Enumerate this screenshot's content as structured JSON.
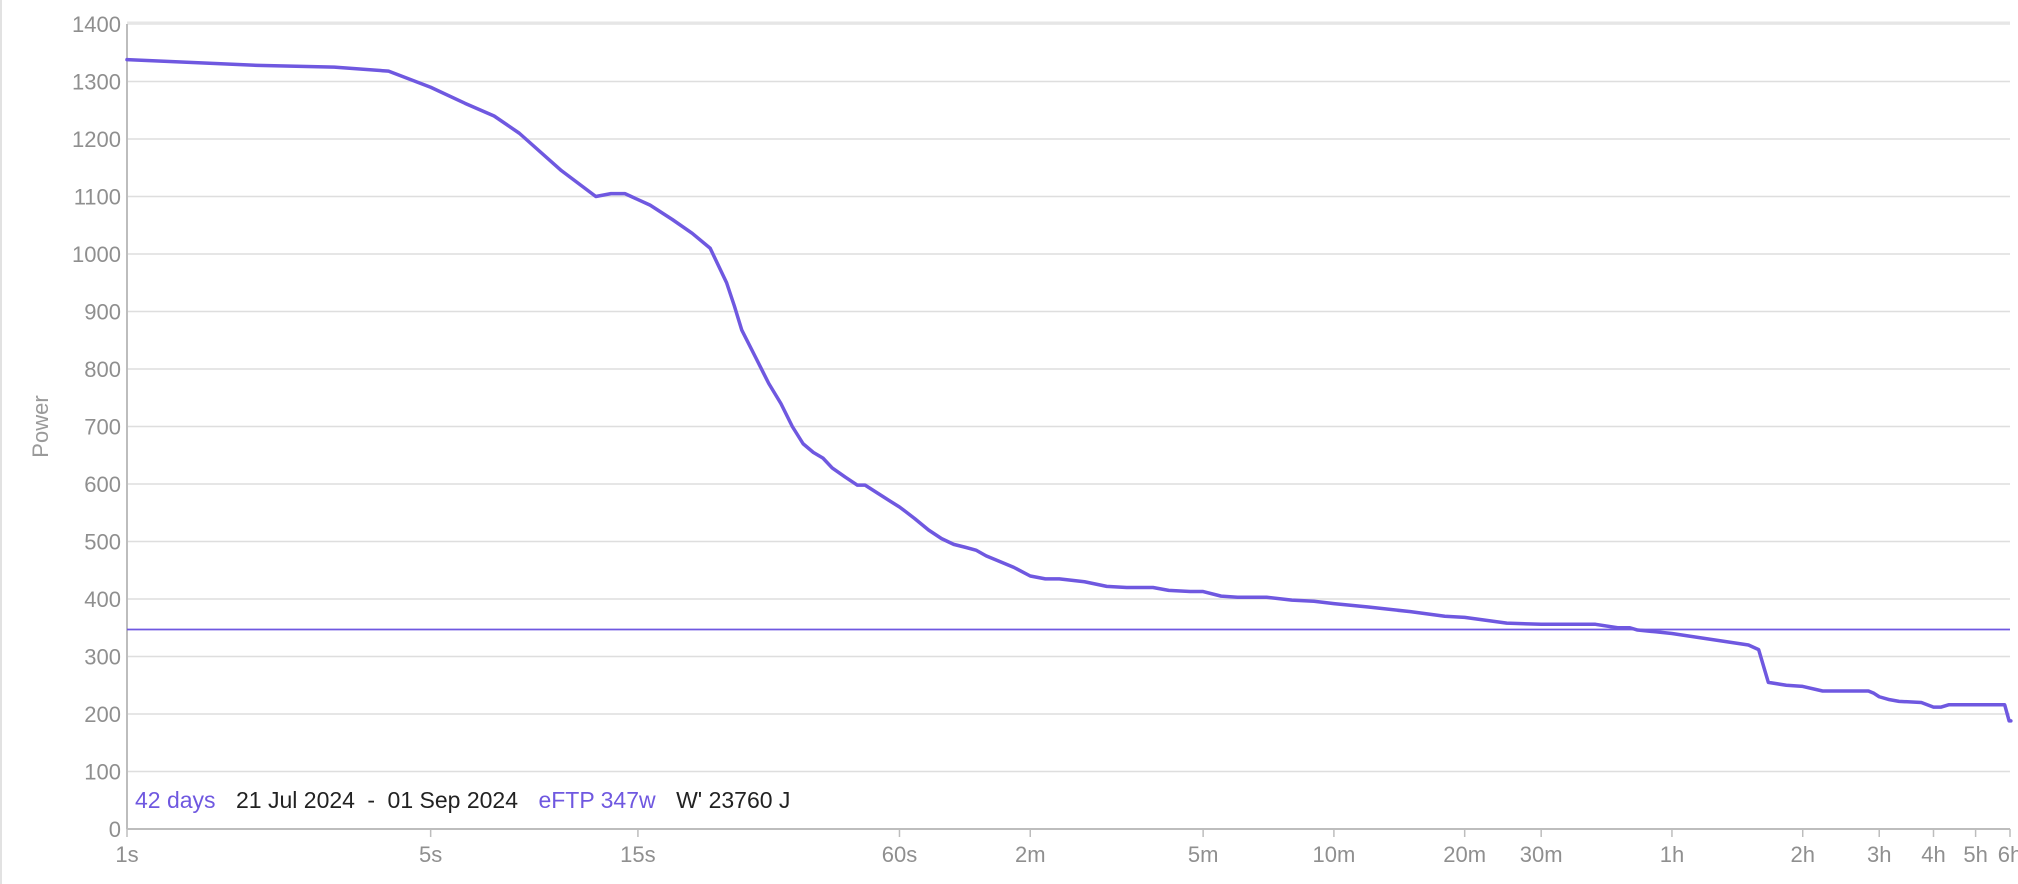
{
  "chart_data": {
    "type": "line",
    "title": "",
    "xlabel": "",
    "ylabel": "Power",
    "x_scale": "log",
    "grid": true,
    "ylim": [
      0,
      1400
    ],
    "y_ticks": [
      0,
      100,
      200,
      300,
      400,
      500,
      600,
      700,
      800,
      900,
      1000,
      1100,
      1200,
      1300,
      1400
    ],
    "x_ticks": [
      {
        "label": "1s",
        "value": 1
      },
      {
        "label": "5s",
        "value": 5
      },
      {
        "label": "15s",
        "value": 15
      },
      {
        "label": "60s",
        "value": 60
      },
      {
        "label": "2m",
        "value": 120
      },
      {
        "label": "5m",
        "value": 300
      },
      {
        "label": "10m",
        "value": 600
      },
      {
        "label": "20m",
        "value": 1200
      },
      {
        "label": "30m",
        "value": 1800
      },
      {
        "label": "1h",
        "value": 3600
      },
      {
        "label": "2h",
        "value": 7200
      },
      {
        "label": "3h",
        "value": 10800
      },
      {
        "label": "4h",
        "value": 14400
      },
      {
        "label": "5h",
        "value": 18000
      },
      {
        "label": "6h",
        "value": 21600
      }
    ],
    "series": [
      {
        "color": "#6f58e0",
        "x": [
          1,
          2,
          3,
          4,
          5,
          6,
          7,
          8,
          10,
          12,
          13,
          14,
          16,
          18,
          20,
          22,
          24,
          25,
          26,
          28,
          30,
          32,
          34,
          36,
          38,
          40,
          42,
          45,
          48,
          50,
          55,
          60,
          62,
          65,
          70,
          75,
          80,
          85,
          90,
          95,
          100,
          110,
          120,
          130,
          140,
          160,
          180,
          200,
          230,
          250,
          280,
          300,
          330,
          360,
          420,
          480,
          540,
          600,
          720,
          900,
          1080,
          1200,
          1500,
          1800,
          2400,
          2700,
          2880,
          3000,
          3300,
          3600,
          5400,
          5700,
          6000,
          6600,
          7200,
          8000,
          8400,
          9000,
          10200,
          10500,
          10800,
          11400,
          12000,
          13500,
          14400,
          15000,
          15600,
          16200,
          21000,
          21500,
          21700
        ],
        "y": [
          1338,
          1328,
          1325,
          1318,
          1290,
          1262,
          1240,
          1210,
          1145,
          1100,
          1105,
          1105,
          1085,
          1060,
          1036,
          1010,
          950,
          910,
          868,
          820,
          775,
          740,
          700,
          670,
          655,
          645,
          628,
          612,
          598,
          598,
          578,
          560,
          552,
          540,
          520,
          505,
          495,
          490,
          485,
          475,
          468,
          455,
          440,
          435,
          435,
          430,
          422,
          420,
          420,
          415,
          413,
          413,
          405,
          403,
          403,
          398,
          396,
          392,
          386,
          378,
          370,
          368,
          358,
          356,
          356,
          350,
          350,
          346,
          343,
          340,
          320,
          312,
          255,
          250,
          248,
          240,
          240,
          240,
          240,
          236,
          230,
          225,
          222,
          220,
          212,
          212,
          216,
          216,
          216,
          188,
          188
        ]
      }
    ],
    "reference_lines": [
      {
        "y": 347,
        "color": "#6f58e0"
      }
    ]
  },
  "info": {
    "days": "42 days",
    "range_start": "21 Jul 2024",
    "range_separator": "-",
    "range_end": "01 Sep 2024",
    "eftp": "eFTP 347w",
    "wprime": "W' 23760 J"
  },
  "colors": {
    "accent": "#6f58e0",
    "grid": "#dedede",
    "axis_text": "#8f8f8f"
  }
}
